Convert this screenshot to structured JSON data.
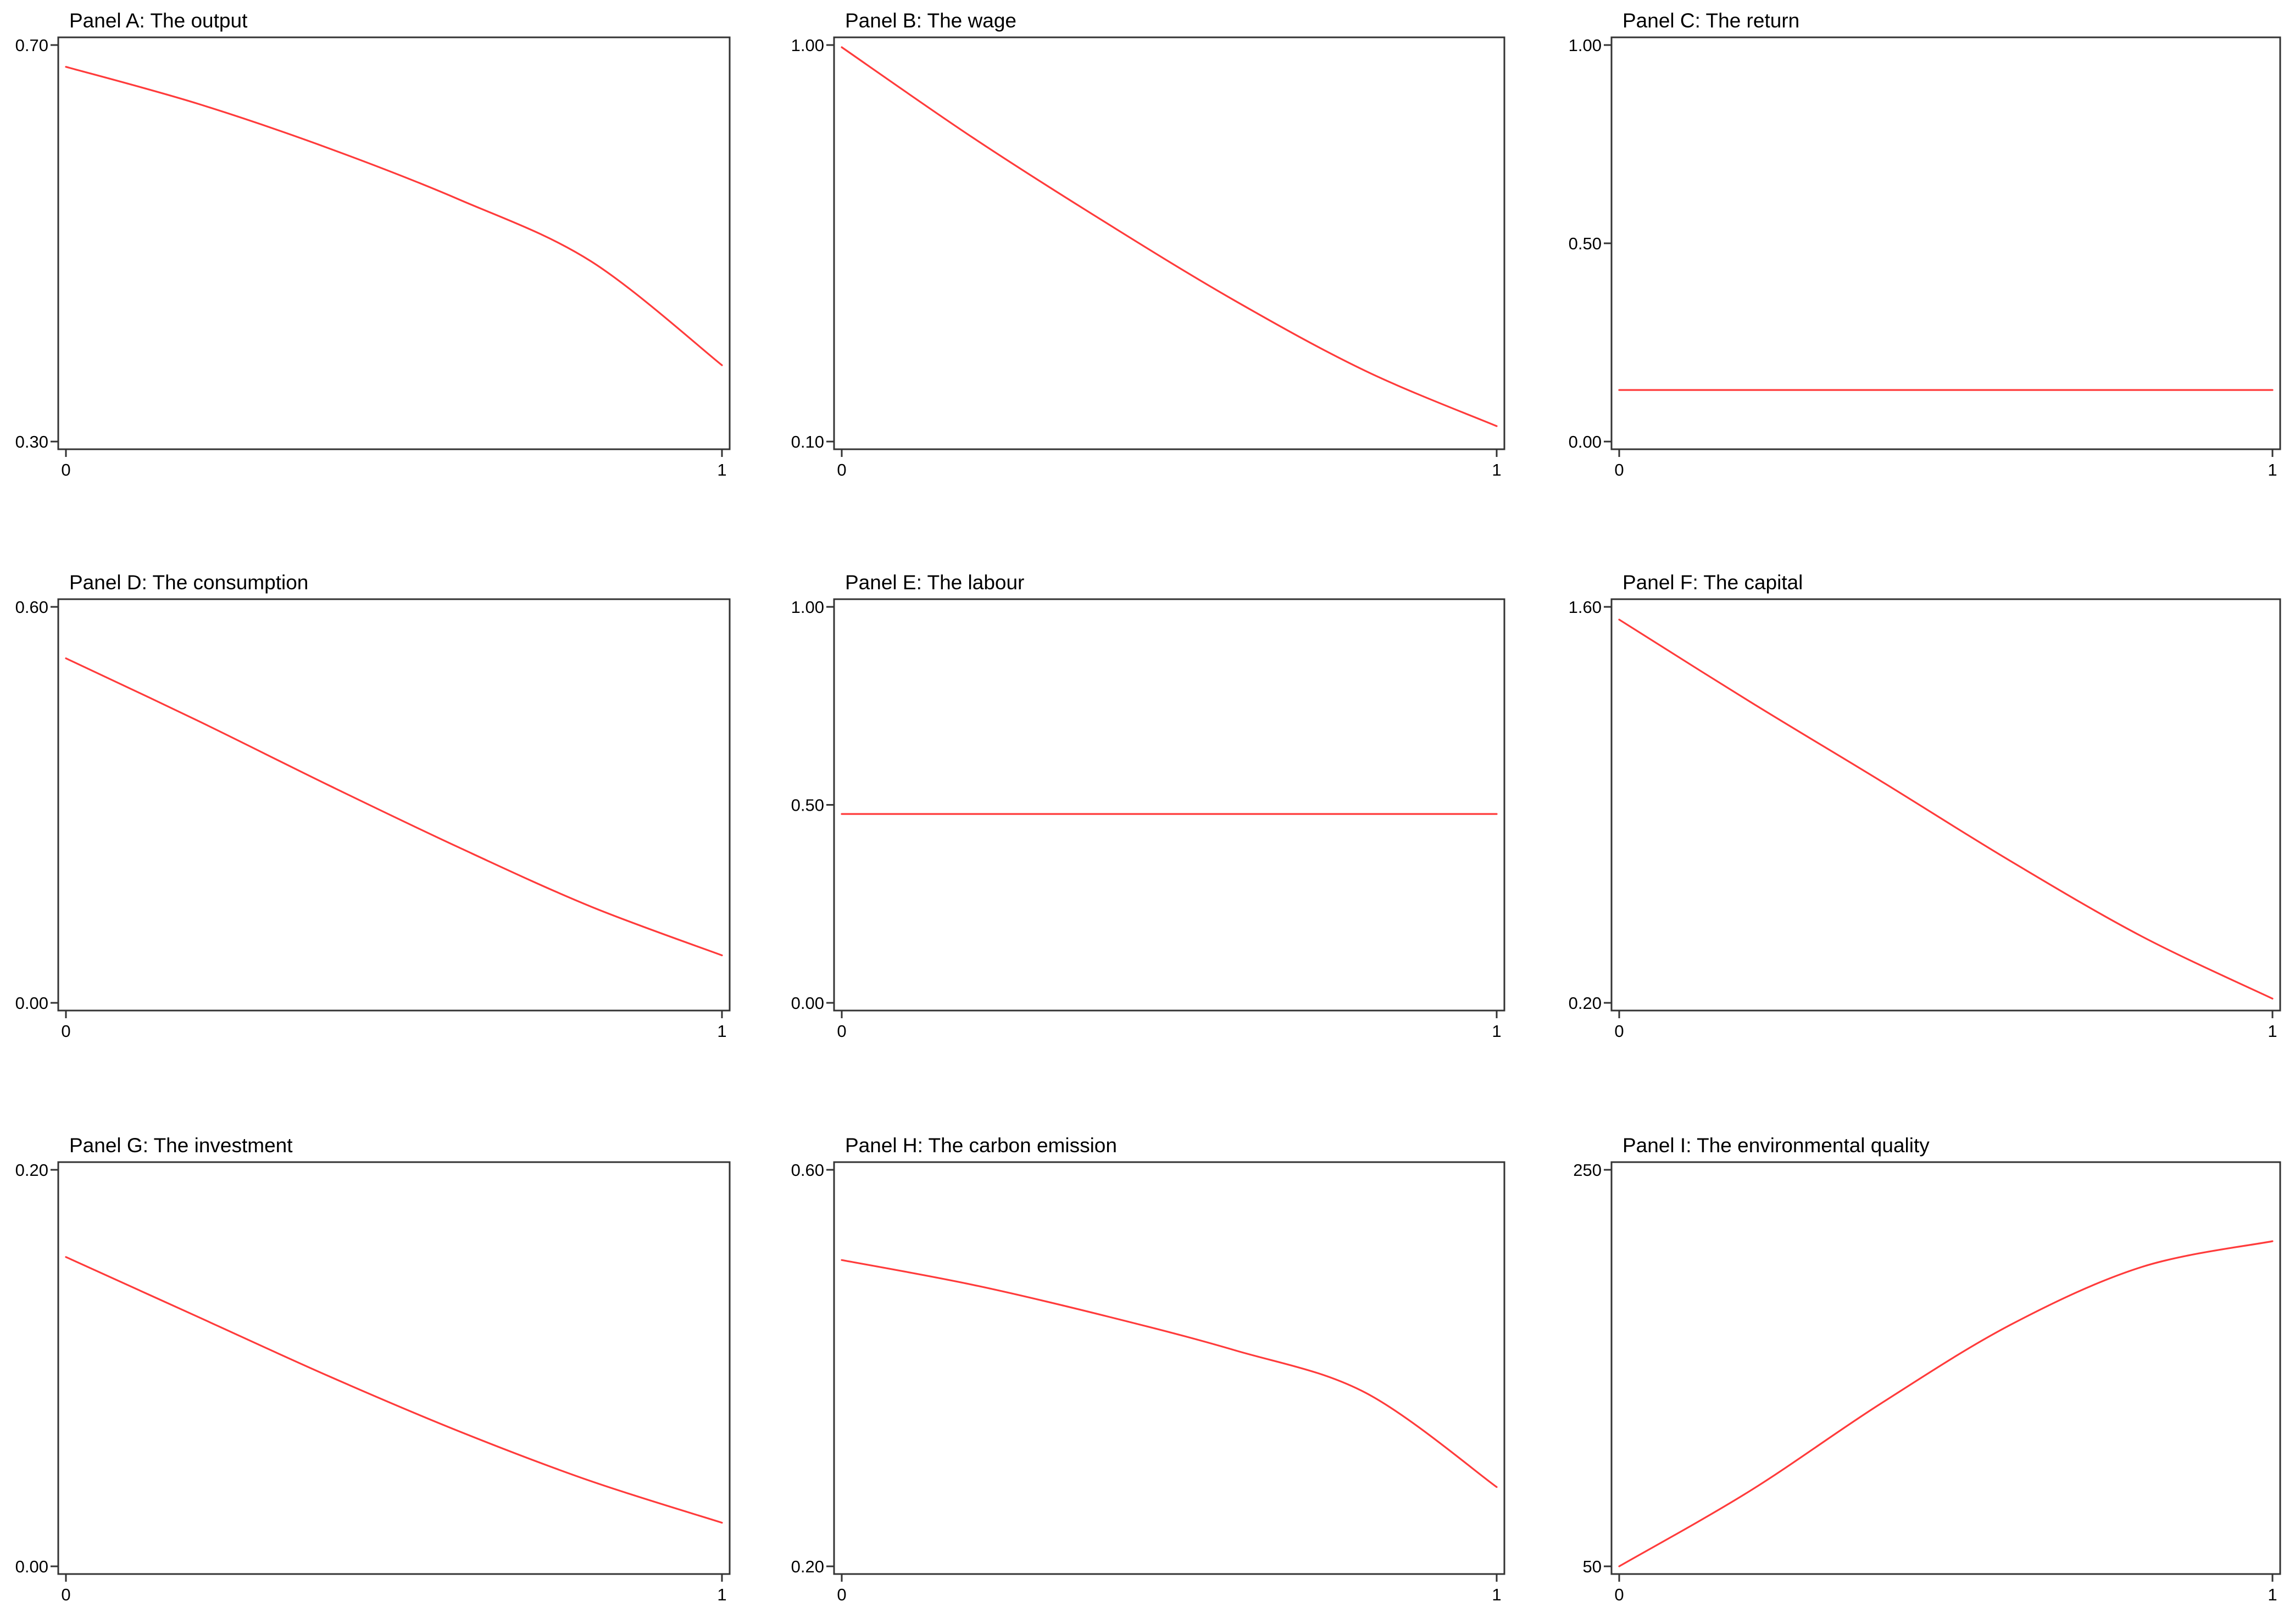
{
  "series_color": "#ff3b3b",
  "chart_data": [
    {
      "id": "A",
      "type": "line",
      "title": "Panel A: The output",
      "xlabel": "",
      "ylabel": "",
      "xlim": [
        0,
        1
      ],
      "ylim": [
        0.3,
        0.7
      ],
      "xticks": [
        {
          "value": 0,
          "label": "0"
        },
        {
          "value": 1,
          "label": "1"
        }
      ],
      "yticks": [
        {
          "value": 0.3,
          "label": "0.30"
        },
        {
          "value": 0.7,
          "label": "0.70"
        }
      ],
      "series": [
        {
          "x": [
            0,
            0.2,
            0.4,
            0.6,
            0.8,
            1.0
          ],
          "y": [
            0.678,
            0.641,
            0.596,
            0.544,
            0.482,
            0.377
          ]
        }
      ]
    },
    {
      "id": "B",
      "type": "line",
      "title": "Panel B: The wage",
      "xlabel": "",
      "ylabel": "",
      "xlim": [
        0,
        1
      ],
      "ylim": [
        0.1,
        1.0
      ],
      "xticks": [
        {
          "value": 0,
          "label": "0"
        },
        {
          "value": 1,
          "label": "1"
        }
      ],
      "yticks": [
        {
          "value": 0.1,
          "label": "0.10"
        },
        {
          "value": 1.0,
          "label": "1.00"
        }
      ],
      "series": [
        {
          "x": [
            0,
            0.2,
            0.4,
            0.6,
            0.8,
            1.0
          ],
          "y": [
            0.995,
            0.79,
            0.6,
            0.42,
            0.26,
            0.135
          ]
        }
      ]
    },
    {
      "id": "C",
      "type": "line",
      "title": "Panel C: The return",
      "xlabel": "",
      "ylabel": "",
      "xlim": [
        0,
        1
      ],
      "ylim": [
        0,
        1.0
      ],
      "xticks": [
        {
          "value": 0,
          "label": "0"
        },
        {
          "value": 1,
          "label": "1"
        }
      ],
      "yticks": [
        {
          "value": 0,
          "label": "0.00"
        },
        {
          "value": 0.5,
          "label": "0.50"
        },
        {
          "value": 1.0,
          "label": "1.00"
        }
      ],
      "series": [
        {
          "x": [
            0,
            1
          ],
          "y": [
            0.13,
            0.13
          ]
        }
      ]
    },
    {
      "id": "D",
      "type": "line",
      "title": "Panel D: The consumption",
      "xlabel": "",
      "ylabel": "",
      "xlim": [
        0,
        1
      ],
      "ylim": [
        0,
        0.6
      ],
      "xticks": [
        {
          "value": 0,
          "label": "0"
        },
        {
          "value": 1,
          "label": "1"
        }
      ],
      "yticks": [
        {
          "value": 0,
          "label": "0.00"
        },
        {
          "value": 0.6,
          "label": "0.60"
        }
      ],
      "series": [
        {
          "x": [
            0,
            0.2,
            0.4,
            0.6,
            0.8,
            1.0
          ],
          "y": [
            0.522,
            0.428,
            0.33,
            0.235,
            0.146,
            0.072
          ]
        }
      ]
    },
    {
      "id": "E",
      "type": "line",
      "title": "Panel E: The labour",
      "xlabel": "",
      "ylabel": "",
      "xlim": [
        0,
        1
      ],
      "ylim": [
        0,
        1.0
      ],
      "xticks": [
        {
          "value": 0,
          "label": "0"
        },
        {
          "value": 1,
          "label": "1"
        }
      ],
      "yticks": [
        {
          "value": 0,
          "label": "0.00"
        },
        {
          "value": 0.5,
          "label": "0.50"
        },
        {
          "value": 1.0,
          "label": "1.00"
        }
      ],
      "series": [
        {
          "x": [
            0,
            1
          ],
          "y": [
            0.477,
            0.477
          ]
        }
      ]
    },
    {
      "id": "F",
      "type": "line",
      "title": "Panel F: The capital",
      "xlabel": "",
      "ylabel": "",
      "xlim": [
        0,
        1
      ],
      "ylim": [
        0.2,
        1.6
      ],
      "xticks": [
        {
          "value": 0,
          "label": "0"
        },
        {
          "value": 1,
          "label": "1"
        }
      ],
      "yticks": [
        {
          "value": 0.2,
          "label": "0.20"
        },
        {
          "value": 1.6,
          "label": "1.60"
        }
      ],
      "series": [
        {
          "x": [
            0,
            0.2,
            0.4,
            0.6,
            0.8,
            1.0
          ],
          "y": [
            1.555,
            1.265,
            0.985,
            0.7,
            0.435,
            0.215
          ]
        }
      ]
    },
    {
      "id": "G",
      "type": "line",
      "title": "Panel G: The investment",
      "xlabel": "",
      "ylabel": "",
      "xlim": [
        0,
        1
      ],
      "ylim": [
        0,
        0.2
      ],
      "xticks": [
        {
          "value": 0,
          "label": "0"
        },
        {
          "value": 1,
          "label": "1"
        }
      ],
      "yticks": [
        {
          "value": 0,
          "label": "0.00"
        },
        {
          "value": 0.2,
          "label": "0.20"
        }
      ],
      "series": [
        {
          "x": [
            0,
            0.2,
            0.4,
            0.6,
            0.8,
            1.0
          ],
          "y": [
            0.156,
            0.126,
            0.096,
            0.068,
            0.043,
            0.022
          ]
        }
      ]
    },
    {
      "id": "H",
      "type": "line",
      "title": "Panel H: The carbon emission",
      "xlabel": "",
      "ylabel": "",
      "xlim": [
        0,
        1
      ],
      "ylim": [
        0.2,
        0.6
      ],
      "xticks": [
        {
          "value": 0,
          "label": "0"
        },
        {
          "value": 1,
          "label": "1"
        }
      ],
      "yticks": [
        {
          "value": 0.2,
          "label": "0.20"
        },
        {
          "value": 0.6,
          "label": "0.60"
        }
      ],
      "series": [
        {
          "x": [
            0,
            0.2,
            0.4,
            0.6,
            0.8,
            1.0
          ],
          "y": [
            0.509,
            0.484,
            0.453,
            0.418,
            0.375,
            0.28
          ]
        }
      ]
    },
    {
      "id": "I",
      "type": "line",
      "title": "Panel I: The environmental quality",
      "xlabel": "",
      "ylabel": "",
      "xlim": [
        0,
        1
      ],
      "ylim": [
        50,
        250
      ],
      "xticks": [
        {
          "value": 0,
          "label": "0"
        },
        {
          "value": 1,
          "label": "1"
        }
      ],
      "yticks": [
        {
          "value": 50,
          "label": "50"
        },
        {
          "value": 250,
          "label": "250"
        }
      ],
      "series": [
        {
          "x": [
            0,
            0.2,
            0.4,
            0.6,
            0.8,
            1.0
          ],
          "y": [
            50,
            88,
            132,
            172,
            201,
            214
          ]
        }
      ]
    }
  ]
}
